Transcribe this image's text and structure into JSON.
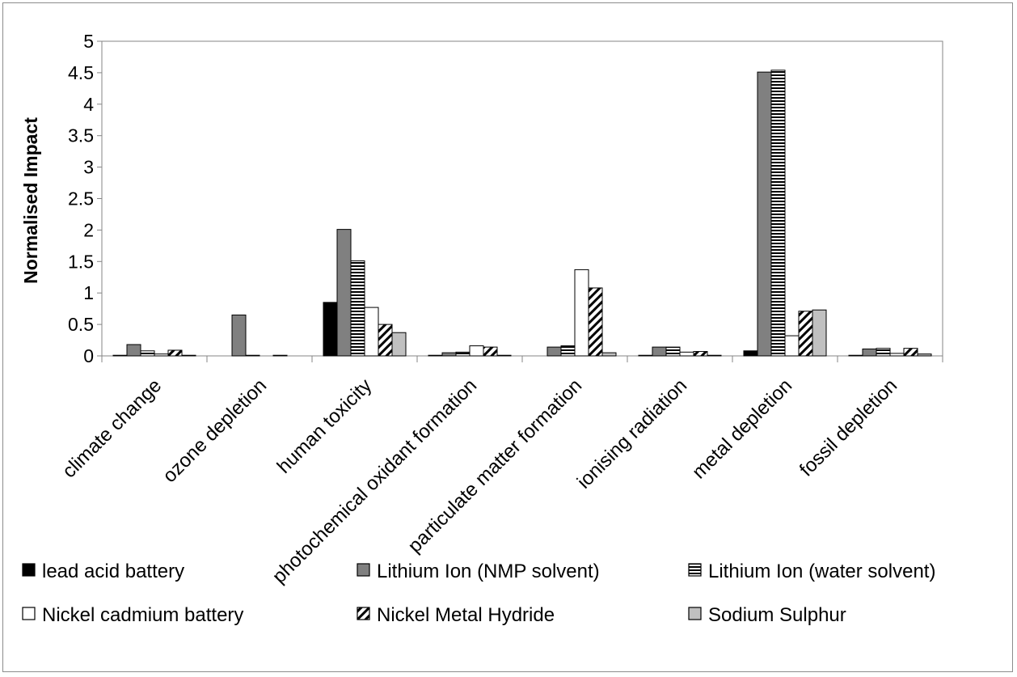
{
  "chart_data": {
    "type": "bar",
    "title": "",
    "xlabel": "",
    "ylabel": "Normalised Impact",
    "ylim": [
      0,
      5
    ],
    "yticks": [
      "0",
      "0.5",
      "1",
      "1.5",
      "2",
      "2.5",
      "3",
      "3.5",
      "4",
      "4.5",
      "5"
    ],
    "grid": false,
    "legend_position": "bottom",
    "categories": [
      "climate change",
      "ozone depletion",
      "human toxicity",
      "photochemical oxidant formation",
      "particulate matter formation",
      "ionising radiation",
      "metal depletion",
      "fossil depletion"
    ],
    "series": [
      {
        "name": "lead acid battery",
        "values": [
          0.01,
          0.0,
          0.85,
          0.01,
          0.0,
          0.01,
          0.08,
          0.01
        ]
      },
      {
        "name": "Lithium Ion (NMP solvent)",
        "values": [
          0.18,
          0.65,
          2.01,
          0.05,
          0.14,
          0.14,
          4.51,
          0.11
        ]
      },
      {
        "name": "Lithium Ion (water solvent)",
        "values": [
          0.08,
          0.01,
          1.51,
          0.06,
          0.16,
          0.14,
          4.54,
          0.12
        ]
      },
      {
        "name": "Nickel cadmium battery",
        "values": [
          0.03,
          0.0,
          0.77,
          0.16,
          1.37,
          0.06,
          0.32,
          0.04
        ]
      },
      {
        "name": "Nickel Metal Hydride",
        "values": [
          0.09,
          0.01,
          0.5,
          0.14,
          1.08,
          0.07,
          0.71,
          0.12
        ]
      },
      {
        "name": "Sodium Sulphur",
        "values": [
          0.01,
          0.0,
          0.37,
          0.01,
          0.05,
          0.01,
          0.73,
          0.03
        ]
      }
    ],
    "series_colors": [
      "#000000",
      "#808080",
      "#ffffff",
      "#ffffff",
      "#ffffff",
      "#c0c0c0"
    ]
  }
}
